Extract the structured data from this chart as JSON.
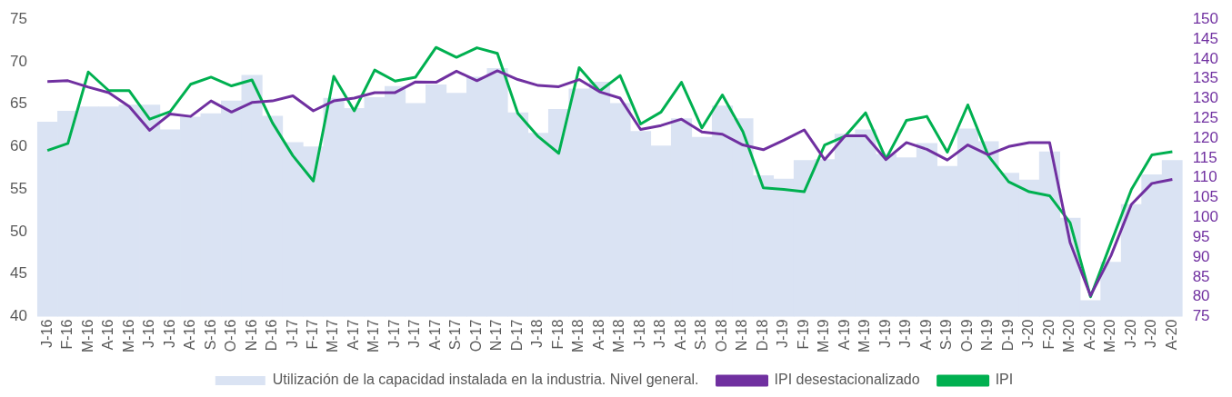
{
  "chart_data": {
    "type": "bar",
    "categories": [
      "J-16",
      "F-16",
      "M-16",
      "A-16",
      "M-16",
      "J-16",
      "J-16",
      "A-16",
      "S-16",
      "O-16",
      "N-16",
      "D-16",
      "J-17",
      "F-17",
      "M-17",
      "A-17",
      "M-17",
      "J-17",
      "J-17",
      "A-17",
      "S-17",
      "O-17",
      "N-17",
      "D-17",
      "J-18",
      "F-18",
      "M-18",
      "A-18",
      "M-18",
      "J-18",
      "J-18",
      "A-18",
      "S-18",
      "O-18",
      "N-18",
      "D-18",
      "J-19",
      "F-19",
      "M-19",
      "A-19",
      "M-19",
      "J-19",
      "J-19",
      "A-19",
      "S-19",
      "O-19",
      "N-19",
      "D-19",
      "J-20",
      "F-20",
      "M-20",
      "A-20",
      "M-20",
      "J-20",
      "J-20",
      "A-20"
    ],
    "series": [
      {
        "name": "Utilización de la capacidad instalada en la industria. Nivel general.",
        "color": "#dae3f3",
        "values": [
          62.9,
          64.2,
          64.7,
          64.7,
          64.9,
          64.9,
          62.0,
          63.5,
          63.9,
          65.4,
          68.4,
          63.6,
          60.5,
          60.0,
          65.7,
          64.5,
          65.8,
          67.1,
          65.1,
          67.3,
          66.3,
          68.2,
          69.2,
          64.0,
          61.6,
          64.4,
          66.8,
          67.6,
          65.1,
          61.8,
          60.1,
          63.3,
          61.1,
          64.8,
          63.3,
          56.6,
          56.2,
          58.4,
          58.5,
          61.5,
          62.0,
          59.1,
          58.7,
          60.4,
          57.7,
          62.1,
          60.6,
          56.9,
          56.1,
          59.4,
          51.6,
          41.9,
          46.4,
          53.2,
          56.7,
          58.4
        ]
      },
      {
        "name": "IPI desestacionalizado",
        "type": "line",
        "axis": "y2",
        "color": "#7030a0",
        "values": [
          134.3,
          134.5,
          132.9,
          131.5,
          128.0,
          122.0,
          126.1,
          125.5,
          129.4,
          126.6,
          129.0,
          129.4,
          130.7,
          126.9,
          129.4,
          130.1,
          131.5,
          131.5,
          134.2,
          134.1,
          136.9,
          134.5,
          137.0,
          134.8,
          133.3,
          133.0,
          134.8,
          131.7,
          130.1,
          122.2,
          123.2,
          124.8,
          121.6,
          121.0,
          118.3,
          117.1,
          119.5,
          122.1,
          114.6,
          120.6,
          120.6,
          114.6,
          118.9,
          117.2,
          114.5,
          118.3,
          115.8,
          117.9,
          118.9,
          118.9,
          93.7,
          80.3,
          90.4,
          103.3,
          108.6,
          109.6
        ]
      },
      {
        "name": "IPI",
        "type": "line",
        "axis": "y2",
        "color": "#00b050",
        "values": [
          116.9,
          118.7,
          136.7,
          132.0,
          132.0,
          124.8,
          126.7,
          133.6,
          135.4,
          133.2,
          134.7,
          123.9,
          115.6,
          109.2,
          135.6,
          126.9,
          137.2,
          134.4,
          135.4,
          142.9,
          140.4,
          142.8,
          141.4,
          126.3,
          120.4,
          116.2,
          137.8,
          131.9,
          135.8,
          123.6,
          126.6,
          134.1,
          122.6,
          130.9,
          121.7,
          107.5,
          107.1,
          106.5,
          118.3,
          120.5,
          126.4,
          114.8,
          124.5,
          125.5,
          116.5,
          128.4,
          115.6,
          109.0,
          106.5,
          105.5,
          98.7,
          80.0,
          93.6,
          107.1,
          115.8,
          116.6
        ]
      }
    ],
    "ylim": [
      40,
      75
    ],
    "yticks": [
      40,
      45,
      50,
      55,
      60,
      65,
      70,
      75
    ],
    "y2lim": [
      75,
      150
    ],
    "y2ticks": [
      75,
      80,
      85,
      90,
      95,
      100,
      105,
      110,
      115,
      120,
      125,
      130,
      135,
      140,
      145,
      150
    ],
    "legend": "bottom",
    "marker": "none",
    "line_style": "solid"
  }
}
